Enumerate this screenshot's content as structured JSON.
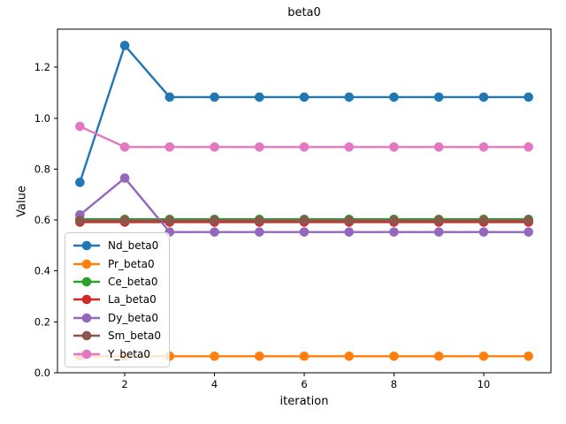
{
  "chart_data": {
    "type": "line",
    "title": "beta0",
    "xlabel": "iteration",
    "ylabel": "Value",
    "x": [
      1,
      2,
      3,
      4,
      5,
      6,
      7,
      8,
      9,
      10,
      11
    ],
    "xlim": [
      0.5,
      11.5
    ],
    "ylim": [
      0,
      1.35
    ],
    "xticks": [
      2,
      4,
      6,
      8,
      10
    ],
    "yticks": [
      0.0,
      0.2,
      0.4,
      0.6,
      0.8,
      1.0,
      1.2
    ],
    "ytick_labels": [
      "0.0",
      "0.2",
      "0.4",
      "0.6",
      "0.8",
      "1.0",
      "1.2"
    ],
    "grid": false,
    "legend_position": "left-middle",
    "series": [
      {
        "name": "Nd_beta0",
        "color": "#1f77b4",
        "values": [
          0.748,
          1.286,
          1.083,
          1.083,
          1.083,
          1.083,
          1.083,
          1.083,
          1.083,
          1.083,
          1.083
        ]
      },
      {
        "name": "Pr_beta0",
        "color": "#ff7f0e",
        "values": [
          0.065,
          0.065,
          0.065,
          0.065,
          0.065,
          0.065,
          0.065,
          0.065,
          0.065,
          0.065,
          0.065
        ]
      },
      {
        "name": "Ce_beta0",
        "color": "#2ca02c",
        "values": [
          0.603,
          0.603,
          0.603,
          0.603,
          0.603,
          0.603,
          0.603,
          0.603,
          0.603,
          0.603,
          0.603
        ]
      },
      {
        "name": "La_beta0",
        "color": "#d62728",
        "values": [
          0.592,
          0.592,
          0.592,
          0.592,
          0.592,
          0.592,
          0.592,
          0.592,
          0.592,
          0.592,
          0.592
        ]
      },
      {
        "name": "Dy_beta0",
        "color": "#9467bd",
        "values": [
          0.62,
          0.765,
          0.553,
          0.553,
          0.553,
          0.553,
          0.553,
          0.553,
          0.553,
          0.553,
          0.553
        ]
      },
      {
        "name": "Sm_beta0",
        "color": "#8c564b",
        "values": [
          0.598,
          0.598,
          0.598,
          0.598,
          0.598,
          0.598,
          0.598,
          0.598,
          0.598,
          0.598,
          0.598
        ]
      },
      {
        "name": "Y_beta0",
        "color": "#e377c2",
        "values": [
          0.968,
          0.887,
          0.887,
          0.887,
          0.887,
          0.887,
          0.887,
          0.887,
          0.887,
          0.887,
          0.887
        ]
      }
    ]
  }
}
